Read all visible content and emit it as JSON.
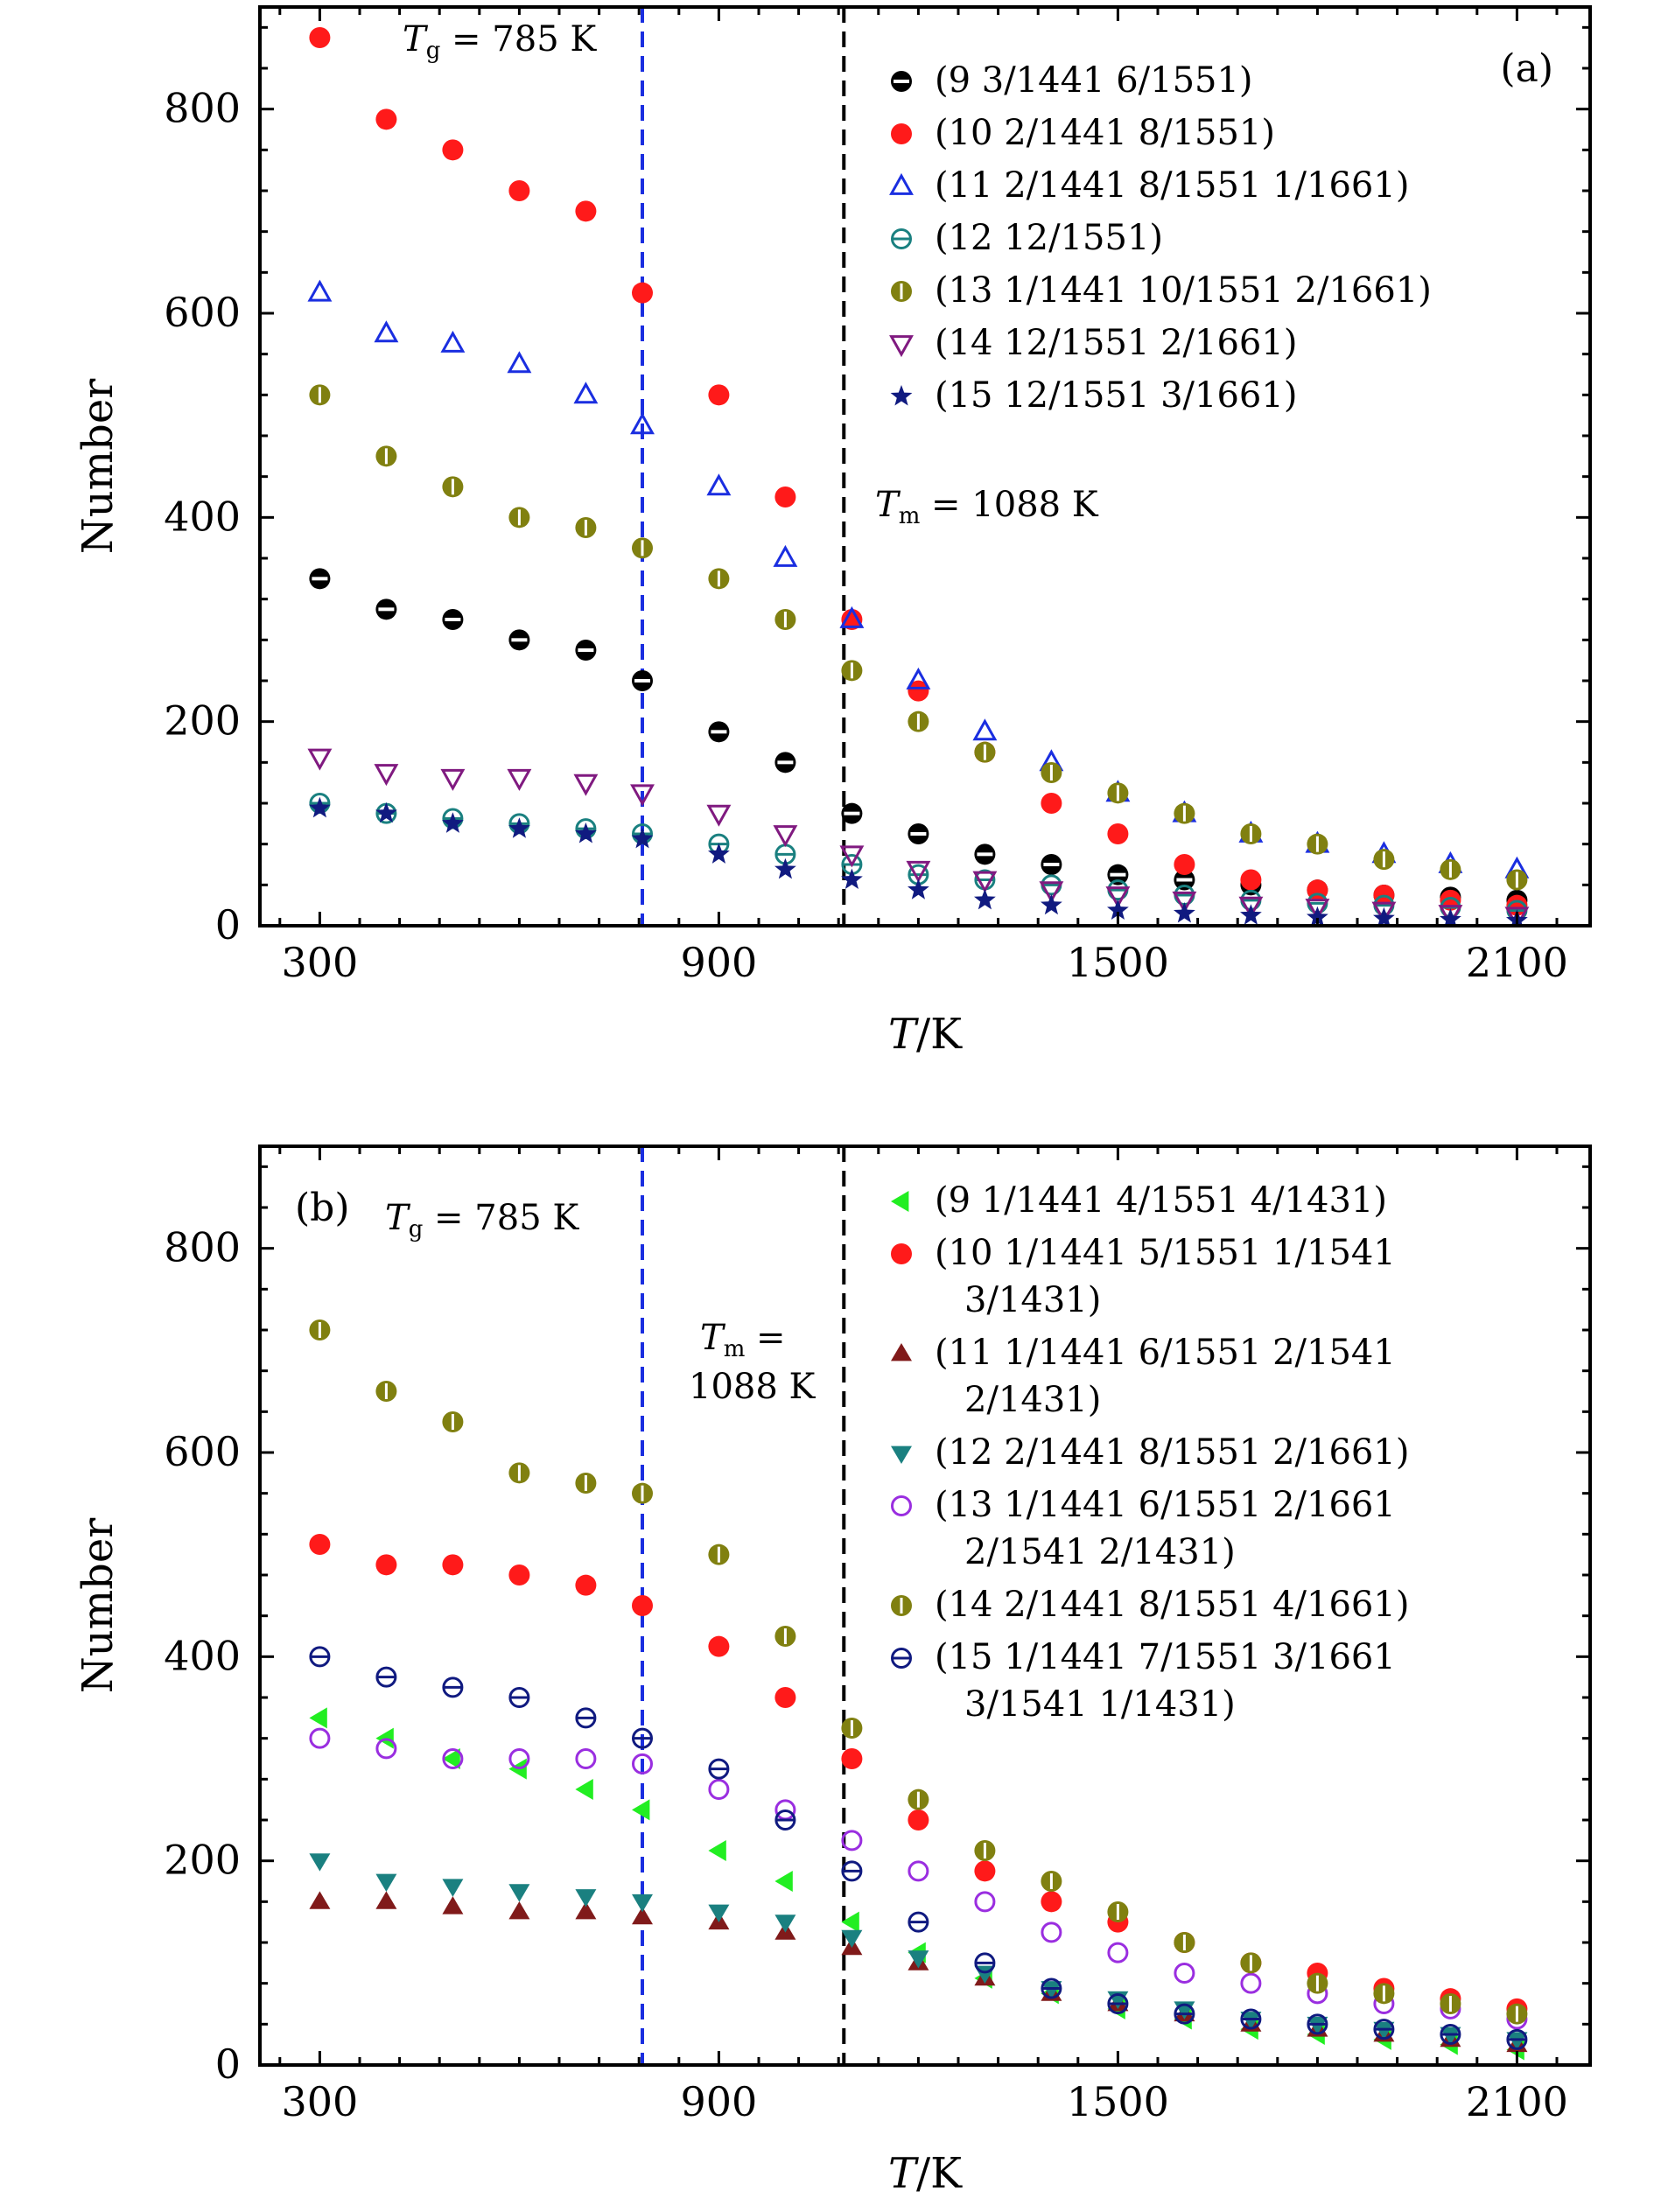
{
  "chart_data": [
    {
      "type": "scatter",
      "panel_label": "(a)",
      "xlabel": "T/K",
      "ylabel": "Number",
      "xlim": [
        210,
        2210
      ],
      "ylim": [
        0,
        900
      ],
      "xticks": [
        300,
        900,
        1500,
        2100
      ],
      "yticks": [
        0,
        200,
        400,
        600,
        800
      ],
      "vlines": [
        {
          "x": 785,
          "label": "Tg = 785 K",
          "color": "#1a2ee0"
        },
        {
          "x": 1088,
          "label": "Tm = 1088 K",
          "color": "#000000"
        }
      ],
      "legend_position": "upper-right",
      "series": [
        {
          "name": "(9 3/1441 6/1551)",
          "marker": "half-circle",
          "color": "#000000",
          "x": [
            300,
            400,
            500,
            600,
            700,
            785,
            900,
            1000,
            1100,
            1200,
            1300,
            1400,
            1500,
            1600,
            1700,
            1800,
            1900,
            2000,
            2100
          ],
          "y": [
            340,
            310,
            300,
            280,
            270,
            240,
            190,
            160,
            110,
            90,
            70,
            60,
            50,
            45,
            40,
            35,
            30,
            28,
            25
          ]
        },
        {
          "name": "(10 2/1441 8/1551)",
          "marker": "filled-circle",
          "color": "#ff1a1a",
          "x": [
            300,
            400,
            500,
            600,
            700,
            785,
            900,
            1000,
            1100,
            1200,
            1300,
            1400,
            1500,
            1600,
            1700,
            1800,
            1900,
            2000,
            2100
          ],
          "y": [
            870,
            790,
            760,
            720,
            700,
            620,
            520,
            420,
            300,
            230,
            170,
            120,
            90,
            60,
            45,
            35,
            30,
            25,
            20
          ]
        },
        {
          "name": "(11 2/1441 8/1551 1/1661)",
          "marker": "triangle-up-open",
          "color": "#1a2ee0",
          "x": [
            300,
            400,
            500,
            600,
            700,
            785,
            900,
            1000,
            1100,
            1200,
            1300,
            1400,
            1500,
            1600,
            1700,
            1800,
            1900,
            2000,
            2100
          ],
          "y": [
            620,
            580,
            570,
            550,
            520,
            490,
            430,
            360,
            300,
            240,
            190,
            160,
            130,
            110,
            90,
            80,
            70,
            60,
            55
          ]
        },
        {
          "name": "(12 12/1551)",
          "marker": "circle-minus",
          "color": "#1a8080",
          "x": [
            300,
            400,
            500,
            600,
            700,
            785,
            900,
            1000,
            1100,
            1200,
            1300,
            1400,
            1500,
            1600,
            1700,
            1800,
            1900,
            2000,
            2100
          ],
          "y": [
            120,
            110,
            105,
            100,
            95,
            90,
            80,
            70,
            60,
            50,
            45,
            40,
            35,
            30,
            25,
            22,
            20,
            18,
            15
          ]
        },
        {
          "name": "(13 1/1441 10/1551 2/1661)",
          "marker": "circle-bar",
          "color": "#808010",
          "x": [
            300,
            400,
            500,
            600,
            700,
            785,
            900,
            1000,
            1100,
            1200,
            1300,
            1400,
            1500,
            1600,
            1700,
            1800,
            1900,
            2000,
            2100
          ],
          "y": [
            520,
            460,
            430,
            400,
            390,
            370,
            340,
            300,
            250,
            200,
            170,
            150,
            130,
            110,
            90,
            80,
            65,
            55,
            45
          ]
        },
        {
          "name": "(14 12/1551 2/1661)",
          "marker": "triangle-down-open",
          "color": "#801a80",
          "x": [
            300,
            400,
            500,
            600,
            700,
            785,
            900,
            1000,
            1100,
            1200,
            1300,
            1400,
            1500,
            1600,
            1700,
            1800,
            1900,
            2000,
            2100
          ],
          "y": [
            165,
            150,
            145,
            145,
            140,
            130,
            110,
            90,
            70,
            55,
            45,
            35,
            30,
            25,
            20,
            18,
            15,
            12,
            10
          ]
        },
        {
          "name": "(15 12/1551 3/1661)",
          "marker": "star",
          "color": "#101a80",
          "x": [
            300,
            400,
            500,
            600,
            700,
            785,
            900,
            1000,
            1100,
            1200,
            1300,
            1400,
            1500,
            1600,
            1700,
            1800,
            1900,
            2000,
            2100
          ],
          "y": [
            115,
            110,
            100,
            95,
            90,
            85,
            70,
            55,
            45,
            35,
            25,
            20,
            15,
            12,
            10,
            8,
            7,
            6,
            5
          ]
        }
      ]
    },
    {
      "type": "scatter",
      "panel_label": "(b)",
      "xlabel": "T/K",
      "ylabel": "Number",
      "xlim": [
        210,
        2210
      ],
      "ylim": [
        0,
        900
      ],
      "xticks": [
        300,
        900,
        1500,
        2100
      ],
      "yticks": [
        0,
        200,
        400,
        600,
        800
      ],
      "vlines": [
        {
          "x": 785,
          "label": "Tg = 785 K",
          "color": "#1a2ee0"
        },
        {
          "x": 1088,
          "label": "Tm = 1088 K",
          "color": "#000000"
        }
      ],
      "legend_position": "upper-right",
      "series": [
        {
          "name": "(9 1/1441 4/1551 4/1431)",
          "marker": "triangle-left",
          "color": "#22ee22",
          "x": [
            300,
            400,
            500,
            600,
            700,
            785,
            900,
            1000,
            1100,
            1200,
            1300,
            1400,
            1500,
            1600,
            1700,
            1800,
            1900,
            2000,
            2100
          ],
          "y": [
            340,
            320,
            300,
            290,
            270,
            250,
            210,
            180,
            140,
            110,
            85,
            70,
            55,
            45,
            35,
            30,
            25,
            20,
            15
          ]
        },
        {
          "name": "(10 1/1441 5/1551 1/1541 3/1431)",
          "marker": "filled-circle",
          "color": "#ff1a1a",
          "x": [
            300,
            400,
            500,
            600,
            700,
            785,
            900,
            1000,
            1100,
            1200,
            1300,
            1400,
            1500,
            1600,
            1700,
            1800,
            1900,
            2000,
            2100
          ],
          "y": [
            510,
            490,
            490,
            480,
            470,
            450,
            410,
            360,
            300,
            240,
            190,
            160,
            140,
            120,
            100,
            90,
            75,
            65,
            55
          ]
        },
        {
          "name": "(11 1/1441 6/1551 2/1541 2/1431)",
          "marker": "triangle-up",
          "color": "#801a1a",
          "x": [
            300,
            400,
            500,
            600,
            700,
            785,
            900,
            1000,
            1100,
            1200,
            1300,
            1400,
            1500,
            1600,
            1700,
            1800,
            1900,
            2000,
            2100
          ],
          "y": [
            160,
            160,
            155,
            150,
            150,
            145,
            140,
            130,
            115,
            100,
            85,
            70,
            60,
            50,
            40,
            35,
            30,
            25,
            20
          ]
        },
        {
          "name": "(12 2/1441 8/1551 2/1661)",
          "marker": "triangle-down",
          "color": "#1a8080",
          "x": [
            300,
            400,
            500,
            600,
            700,
            785,
            900,
            1000,
            1100,
            1200,
            1300,
            1400,
            1500,
            1600,
            1700,
            1800,
            1900,
            2000,
            2100
          ],
          "y": [
            200,
            180,
            175,
            170,
            165,
            160,
            150,
            140,
            125,
            105,
            90,
            75,
            65,
            55,
            45,
            40,
            35,
            30,
            25
          ]
        },
        {
          "name": "(13 1/1441 6/1551 2/1661 2/1541 2/1431)",
          "marker": "open-circle",
          "color": "#9a2ee0",
          "x": [
            300,
            400,
            500,
            600,
            700,
            785,
            900,
            1000,
            1100,
            1200,
            1300,
            1400,
            1500,
            1600,
            1700,
            1800,
            1900,
            2000,
            2100
          ],
          "y": [
            320,
            310,
            300,
            300,
            300,
            295,
            270,
            250,
            220,
            190,
            160,
            130,
            110,
            90,
            80,
            70,
            60,
            55,
            45
          ]
        },
        {
          "name": "(14 2/1441 8/1551 4/1661)",
          "marker": "circle-bar",
          "color": "#808010",
          "x": [
            300,
            400,
            500,
            600,
            700,
            785,
            900,
            1000,
            1100,
            1200,
            1300,
            1400,
            1500,
            1600,
            1700,
            1800,
            1900,
            2000,
            2100
          ],
          "y": [
            720,
            660,
            630,
            580,
            570,
            560,
            500,
            420,
            330,
            260,
            210,
            180,
            150,
            120,
            100,
            80,
            70,
            60,
            50
          ]
        },
        {
          "name": "(15 1/1441 7/1551 3/1661 3/1541 1/1431)",
          "marker": "circle-minus",
          "color": "#101a80",
          "x": [
            300,
            400,
            500,
            600,
            700,
            785,
            900,
            1000,
            1100,
            1200,
            1300,
            1400,
            1500,
            1600,
            1700,
            1800,
            1900,
            2000,
            2100
          ],
          "y": [
            400,
            380,
            370,
            360,
            340,
            320,
            290,
            240,
            190,
            140,
            100,
            75,
            60,
            50,
            45,
            40,
            35,
            30,
            25
          ]
        }
      ]
    }
  ]
}
